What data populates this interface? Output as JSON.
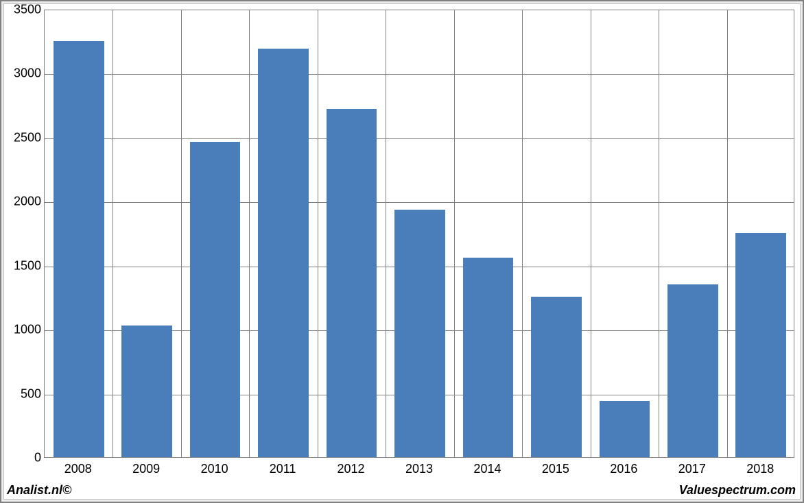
{
  "chart": {
    "type": "bar",
    "categories": [
      "2008",
      "2009",
      "2010",
      "2011",
      "2012",
      "2013",
      "2014",
      "2015",
      "2016",
      "2017",
      "2018"
    ],
    "values": [
      3250,
      1030,
      2460,
      3190,
      2720,
      1930,
      1560,
      1250,
      440,
      1350,
      1750
    ],
    "bar_color": "#4a7ebb",
    "ylim": [
      0,
      3500
    ],
    "ytick_step": 500,
    "yticks": [
      0,
      500,
      1000,
      1500,
      2000,
      2500,
      3000,
      3500
    ],
    "grid_color": "#808080",
    "background_color": "#ffffff",
    "frame_background": "#ececec",
    "axis_fontsize": 18,
    "bar_width_ratio": 0.74
  },
  "footer": {
    "left": "Analist.nl©",
    "right": "Valuespectrum.com"
  }
}
